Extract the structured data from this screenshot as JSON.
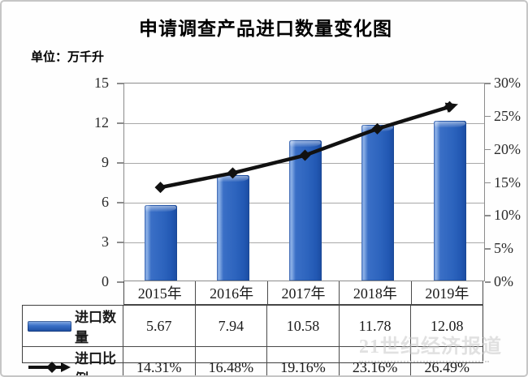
{
  "chart_data": {
    "type": "bar+line",
    "title": "申请调查产品进口数量变化图",
    "unit_label": "单位：万千升",
    "categories": [
      "2015年",
      "2016年",
      "2017年",
      "2018年",
      "2019年"
    ],
    "series": [
      {
        "name": "进口数量",
        "type": "bar",
        "axis": "left",
        "values": [
          5.67,
          7.94,
          10.58,
          11.78,
          12.08
        ]
      },
      {
        "name": "进口比例",
        "type": "line",
        "axis": "right",
        "values": [
          14.31,
          16.48,
          19.16,
          23.16,
          26.49
        ]
      }
    ],
    "left_axis": {
      "min": 0,
      "max": 15,
      "step": 3,
      "ticks": [
        "15",
        "12",
        "9",
        "6",
        "3",
        "0"
      ]
    },
    "right_axis": {
      "min": 0,
      "max": 30,
      "step": 5,
      "ticks": [
        "30%",
        "25%",
        "20%",
        "15%",
        "10%",
        "5%",
        "0%"
      ]
    },
    "grid": "horizontal",
    "legend_position": "table-below",
    "colors": {
      "bar": "#2c63bd",
      "bar_highlight": "#8db1e6",
      "bar_shadow": "#1c4c9f",
      "line": "#111111",
      "gridline": "#a8a8a8"
    }
  },
  "table": {
    "columns": [
      "2015年",
      "2016年",
      "2017年",
      "2018年",
      "2019年"
    ],
    "row_labels": [
      "进口数量",
      "进口比例"
    ],
    "rows": [
      [
        "5.67",
        "7.94",
        "10.58",
        "11.78",
        "12.08"
      ],
      [
        "14.31%",
        "16.48%",
        "19.16%",
        "23.16%",
        "26.49%"
      ]
    ]
  },
  "watermark": {
    "text": "21世纪经济报道"
  }
}
